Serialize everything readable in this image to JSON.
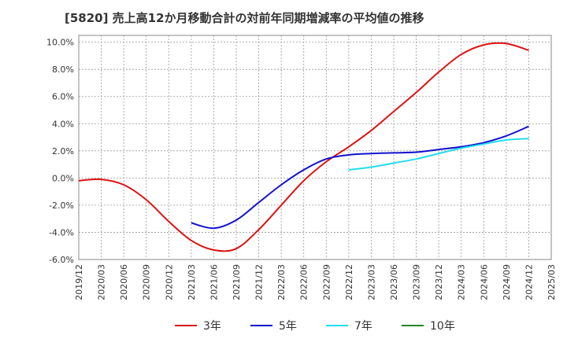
{
  "chart_data": {
    "type": "line",
    "title": "[5820]  売上高12か月移動合計の対前年同期増減率の平均値の推移",
    "xlabel": "",
    "ylabel": "",
    "x_ticks": [
      "2019/12",
      "2020/03",
      "2020/06",
      "2020/09",
      "2020/12",
      "2021/03",
      "2021/06",
      "2021/09",
      "2021/12",
      "2022/03",
      "2022/06",
      "2022/09",
      "2022/12",
      "2023/03",
      "2023/06",
      "2023/09",
      "2023/12",
      "2024/03",
      "2024/06",
      "2024/09",
      "2024/12",
      "2025/03"
    ],
    "y_ticks": [
      "10.0%",
      "8.0%",
      "6.0%",
      "4.0%",
      "2.0%",
      "0.0%",
      "-2.0%",
      "-4.0%",
      "-6.0%"
    ],
    "ylim": [
      -6.0,
      10.5
    ],
    "grid": true,
    "legend_position": "bottom",
    "series": [
      {
        "name": "3年",
        "color": "#dd1111",
        "x": [
          "2019/12",
          "2020/03",
          "2020/06",
          "2020/09",
          "2020/12",
          "2021/03",
          "2021/06",
          "2021/09",
          "2021/12",
          "2022/03",
          "2022/06",
          "2022/09",
          "2022/12",
          "2023/03",
          "2023/06",
          "2023/09",
          "2023/12",
          "2024/03",
          "2024/06",
          "2024/09",
          "2024/12"
        ],
        "values": [
          -0.2,
          -0.1,
          -0.5,
          -1.6,
          -3.2,
          -4.6,
          -5.3,
          -5.2,
          -3.8,
          -2.0,
          -0.2,
          1.2,
          2.3,
          3.5,
          4.9,
          6.3,
          7.8,
          9.1,
          9.8,
          9.9,
          9.4
        ]
      },
      {
        "name": "5年",
        "color": "#1111cc",
        "x": [
          "2021/03",
          "2021/06",
          "2021/09",
          "2021/12",
          "2022/03",
          "2022/06",
          "2022/09",
          "2022/12",
          "2023/03",
          "2023/06",
          "2023/09",
          "2023/12",
          "2024/03",
          "2024/06",
          "2024/09",
          "2024/12"
        ],
        "values": [
          -3.3,
          -3.7,
          -3.1,
          -1.8,
          -0.5,
          0.6,
          1.4,
          1.7,
          1.8,
          1.85,
          1.9,
          2.1,
          2.3,
          2.6,
          3.1,
          3.8
        ]
      },
      {
        "name": "7年",
        "color": "#22ddee",
        "x": [
          "2022/12",
          "2023/03",
          "2023/06",
          "2023/09",
          "2023/12",
          "2024/03",
          "2024/06",
          "2024/09",
          "2024/12"
        ],
        "values": [
          0.6,
          0.8,
          1.1,
          1.4,
          1.8,
          2.2,
          2.5,
          2.8,
          2.9
        ]
      },
      {
        "name": "10年",
        "color": "#228822",
        "x": [],
        "values": []
      }
    ]
  }
}
